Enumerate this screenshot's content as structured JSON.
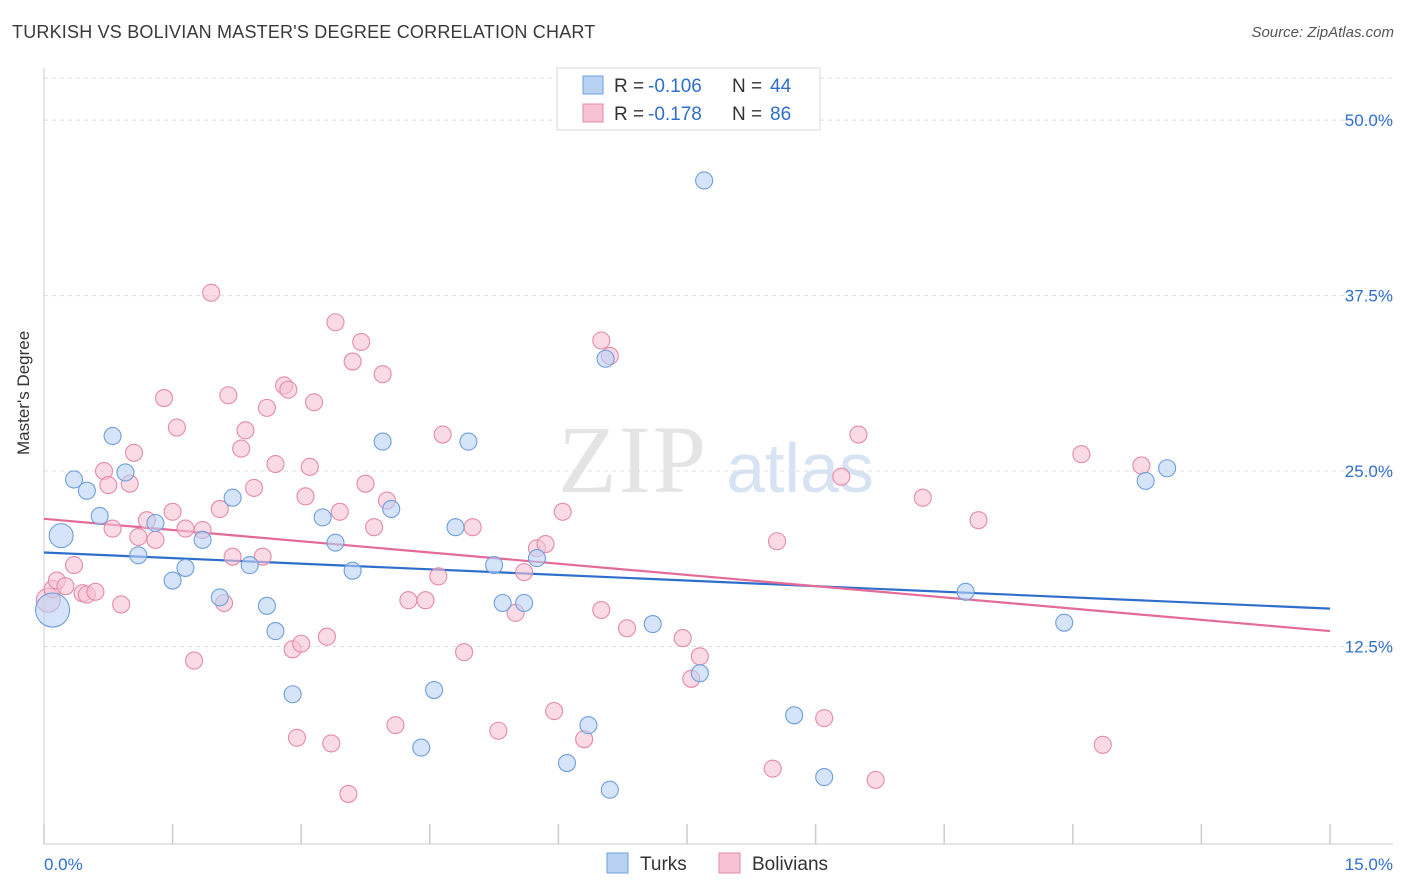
{
  "title": "TURKISH VS BOLIVIAN MASTER'S DEGREE CORRELATION CHART",
  "source": "Source: ZipAtlas.com",
  "watermark": {
    "main": "ZIP",
    "sub": "atlas"
  },
  "colors": {
    "turks_fill": "#b9d2f3",
    "turks_stroke": "#6f9fdb",
    "turks_line": "#2f6fcc",
    "bolivians_fill": "#f7c3d4",
    "bolivians_stroke": "#e58aab",
    "bolivians_line": "#e46a97",
    "value_text": "#2f6fcc",
    "grid": "#dddddd"
  },
  "legend_top": {
    "rows": [
      {
        "r_label": "R =",
        "r_value": "-0.106",
        "n_label": "N =",
        "n_value": "44"
      },
      {
        "r_label": "R =",
        "r_value": "-0.178",
        "n_label": "N =",
        "n_value": "86"
      }
    ]
  },
  "legend_bottom": [
    "Turks",
    "Bolivians"
  ],
  "chart_data": {
    "type": "scatter",
    "title": "TURKISH VS BOLIVIAN MASTER'S DEGREE CORRELATION CHART",
    "ylabel": "Master's Degree",
    "xlabel": "",
    "xlim": [
      0,
      15
    ],
    "ylim": [
      0,
      53
    ],
    "x_tick_labels": [
      "0.0%",
      "15.0%"
    ],
    "y_ticks": [
      12.5,
      25.0,
      37.5,
      50.0
    ],
    "y_tick_labels": [
      "12.5%",
      "25.0%",
      "37.5%",
      "50.0%"
    ],
    "grid": true,
    "legend_position": "top-center",
    "series": [
      {
        "name": "Turks",
        "r": -0.106,
        "n": 44,
        "trend": {
          "x": [
            0,
            15
          ],
          "y": [
            19.2,
            15.2
          ]
        },
        "points": [
          [
            0.1,
            15.1,
            3
          ],
          [
            0.2,
            20.4,
            2
          ],
          [
            0.35,
            24.4,
            1
          ],
          [
            0.5,
            23.6,
            1
          ],
          [
            0.65,
            21.8,
            1
          ],
          [
            0.8,
            27.5,
            1
          ],
          [
            0.95,
            24.9,
            1
          ],
          [
            1.1,
            19.0,
            1
          ],
          [
            1.3,
            21.3,
            1
          ],
          [
            1.5,
            17.2,
            1
          ],
          [
            1.65,
            18.1,
            1
          ],
          [
            1.85,
            20.1,
            1
          ],
          [
            2.05,
            16.0,
            1
          ],
          [
            2.2,
            23.1,
            1
          ],
          [
            2.4,
            18.3,
            1
          ],
          [
            2.6,
            15.4,
            1
          ],
          [
            2.7,
            13.6,
            1
          ],
          [
            2.9,
            9.1,
            1
          ],
          [
            3.25,
            21.7,
            1
          ],
          [
            3.4,
            19.9,
            1
          ],
          [
            3.6,
            17.9,
            1
          ],
          [
            3.95,
            27.1,
            1
          ],
          [
            4.05,
            22.3,
            1
          ],
          [
            4.4,
            5.3,
            1
          ],
          [
            4.55,
            9.4,
            1
          ],
          [
            4.8,
            21.0,
            1
          ],
          [
            4.95,
            27.1,
            1
          ],
          [
            5.25,
            18.3,
            1
          ],
          [
            5.35,
            15.6,
            1
          ],
          [
            5.6,
            15.6,
            1
          ],
          [
            5.75,
            18.8,
            1
          ],
          [
            6.1,
            4.2,
            1
          ],
          [
            6.35,
            6.9,
            1
          ],
          [
            6.6,
            2.3,
            1
          ],
          [
            6.55,
            33.0,
            1
          ],
          [
            7.1,
            14.1,
            1
          ],
          [
            7.65,
            10.6,
            1
          ],
          [
            7.7,
            45.7,
            1
          ],
          [
            8.75,
            7.6,
            1
          ],
          [
            9.1,
            3.2,
            1
          ],
          [
            10.75,
            16.4,
            1
          ],
          [
            11.9,
            14.2,
            1
          ],
          [
            12.85,
            24.3,
            1
          ],
          [
            13.1,
            25.2,
            1
          ]
        ]
      },
      {
        "name": "Bolivians",
        "r": -0.178,
        "n": 86,
        "trend": {
          "x": [
            0,
            15
          ],
          "y": [
            21.6,
            13.6
          ]
        },
        "points": [
          [
            0.05,
            15.8,
            2
          ],
          [
            0.1,
            16.6,
            1
          ],
          [
            0.15,
            17.2,
            1
          ],
          [
            0.25,
            16.8,
            1
          ],
          [
            0.35,
            18.3,
            1
          ],
          [
            0.45,
            16.3,
            1
          ],
          [
            0.5,
            16.2,
            1
          ],
          [
            0.6,
            16.4,
            1
          ],
          [
            0.7,
            25.0,
            1
          ],
          [
            0.75,
            24.0,
            1
          ],
          [
            0.8,
            20.9,
            1
          ],
          [
            0.9,
            15.5,
            1
          ],
          [
            1.0,
            24.1,
            1
          ],
          [
            1.05,
            26.3,
            1
          ],
          [
            1.1,
            20.3,
            1
          ],
          [
            1.2,
            21.5,
            1
          ],
          [
            1.3,
            20.1,
            1
          ],
          [
            1.4,
            30.2,
            1
          ],
          [
            1.5,
            22.1,
            1
          ],
          [
            1.55,
            28.1,
            1
          ],
          [
            1.65,
            20.9,
            1
          ],
          [
            1.75,
            11.5,
            1
          ],
          [
            1.85,
            20.8,
            1
          ],
          [
            1.95,
            37.7,
            1
          ],
          [
            2.05,
            22.3,
            1
          ],
          [
            2.1,
            15.6,
            1
          ],
          [
            2.15,
            30.4,
            1
          ],
          [
            2.2,
            18.9,
            1
          ],
          [
            2.3,
            26.6,
            1
          ],
          [
            2.35,
            27.9,
            1
          ],
          [
            2.45,
            23.8,
            1
          ],
          [
            2.55,
            18.9,
            1
          ],
          [
            2.6,
            29.5,
            1
          ],
          [
            2.7,
            25.5,
            1
          ],
          [
            2.8,
            31.1,
            1
          ],
          [
            2.85,
            30.8,
            1
          ],
          [
            2.9,
            12.3,
            1
          ],
          [
            2.95,
            6.0,
            1
          ],
          [
            3.0,
            12.7,
            1
          ],
          [
            3.05,
            23.2,
            1
          ],
          [
            3.1,
            25.3,
            1
          ],
          [
            3.15,
            29.9,
            1
          ],
          [
            3.3,
            13.2,
            1
          ],
          [
            3.35,
            5.6,
            1
          ],
          [
            3.4,
            35.6,
            1
          ],
          [
            3.45,
            22.1,
            1
          ],
          [
            3.55,
            2.0,
            1
          ],
          [
            3.6,
            32.8,
            1
          ],
          [
            3.7,
            34.2,
            1
          ],
          [
            3.75,
            24.1,
            1
          ],
          [
            3.85,
            21.0,
            1
          ],
          [
            3.95,
            31.9,
            1
          ],
          [
            4.0,
            22.9,
            1
          ],
          [
            4.1,
            6.9,
            1
          ],
          [
            4.25,
            15.8,
            1
          ],
          [
            4.45,
            15.8,
            1
          ],
          [
            4.6,
            17.5,
            1
          ],
          [
            4.65,
            27.6,
            1
          ],
          [
            4.9,
            12.1,
            1
          ],
          [
            5.0,
            21.0,
            1
          ],
          [
            5.3,
            6.5,
            1
          ],
          [
            5.5,
            14.9,
            1
          ],
          [
            5.6,
            17.8,
            1
          ],
          [
            5.75,
            19.5,
            1
          ],
          [
            5.85,
            19.8,
            1
          ],
          [
            5.95,
            7.9,
            1
          ],
          [
            6.05,
            22.1,
            1
          ],
          [
            6.3,
            5.9,
            1
          ],
          [
            6.5,
            34.3,
            1
          ],
          [
            6.5,
            15.1,
            1
          ],
          [
            6.6,
            33.2,
            1
          ],
          [
            6.8,
            13.8,
            1
          ],
          [
            7.45,
            13.1,
            1
          ],
          [
            7.55,
            10.2,
            1
          ],
          [
            7.65,
            11.8,
            1
          ],
          [
            8.55,
            20.0,
            1
          ],
          [
            8.5,
            3.8,
            1
          ],
          [
            9.1,
            7.4,
            1
          ],
          [
            9.3,
            24.6,
            1
          ],
          [
            9.5,
            27.6,
            1
          ],
          [
            9.7,
            3.0,
            1
          ],
          [
            10.25,
            23.1,
            1
          ],
          [
            10.9,
            21.5,
            1
          ],
          [
            12.1,
            26.2,
            1
          ],
          [
            12.35,
            5.5,
            1
          ],
          [
            12.8,
            25.4,
            1
          ]
        ]
      }
    ]
  }
}
